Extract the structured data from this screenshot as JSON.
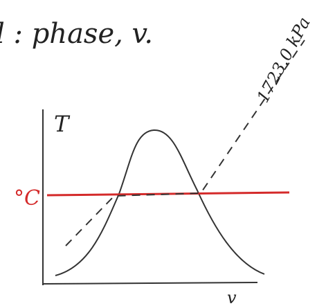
{
  "header": {
    "title": "l : phase, v."
  },
  "diagram": {
    "y_axis_label": "T",
    "x_axis_label": "v",
    "isotherm_label": "°C",
    "isobar_label": "1723.0 kPa"
  }
}
